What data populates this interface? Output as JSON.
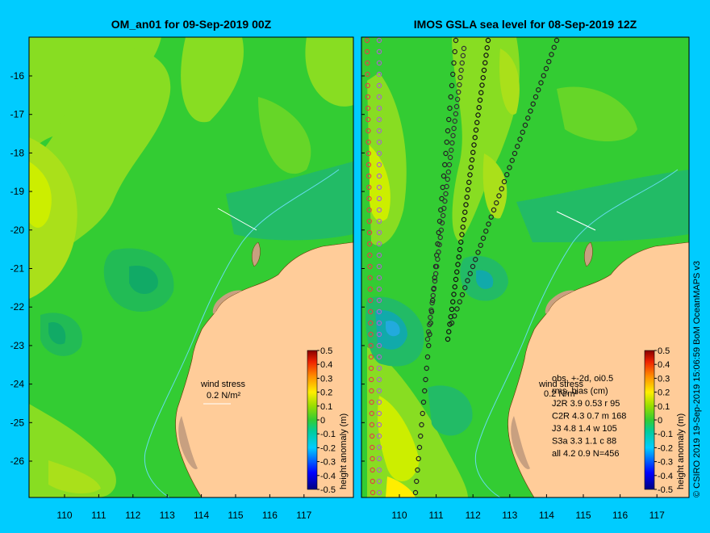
{
  "panels": [
    {
      "title": "OM_an01 for 09-Sep-2019 00Z",
      "wind_label": "wind stress",
      "wind_value": "0.2 N/m²"
    },
    {
      "title": "IMOS GSLA sea level  for 08-Sep-2019 12Z",
      "wind_label": "wind stress",
      "wind_value": "0.2 N/m²",
      "stats": [
        {
          "text": "obs, +-2d, oi0.5"
        },
        {
          "text": "rms, bias (cm)"
        },
        {
          "text": "J2R   3.9  0.53 r 95"
        },
        {
          "text": "C2R   4.3  0.7  m 168"
        },
        {
          "text": "J3     4.8  1.4  w 105"
        },
        {
          "text": "S3a   3.3  1.1  c 88"
        },
        {
          "text": "all    4.2  0.9  N=456"
        }
      ]
    }
  ],
  "colorbar": {
    "label": "height anomaly  (m)",
    "ticks": [
      "0.5",
      "0.4",
      "0.3",
      "0.2",
      "0.1",
      "0",
      "-0.1",
      "-0.2",
      "-0.3",
      "-0.4",
      "-0.5"
    ]
  },
  "axes": {
    "lat_ticks": [
      "-16",
      "-17",
      "-18",
      "-19",
      "-20",
      "-21",
      "-22",
      "-23",
      "-24",
      "-25",
      "-26"
    ],
    "lon_ticks": [
      "110",
      "111",
      "112",
      "113",
      "114",
      "115",
      "116",
      "117"
    ]
  },
  "credit": "© CSIRO 2019   19-Sep-2019 15:06:59 BoM OceanMAPS v3",
  "colors": {
    "background": "#00ccff",
    "land": "#ffcc99",
    "sea_base": "#33cc33",
    "contour_light": "#88dd22",
    "contour_yellow": "#ccee00"
  }
}
